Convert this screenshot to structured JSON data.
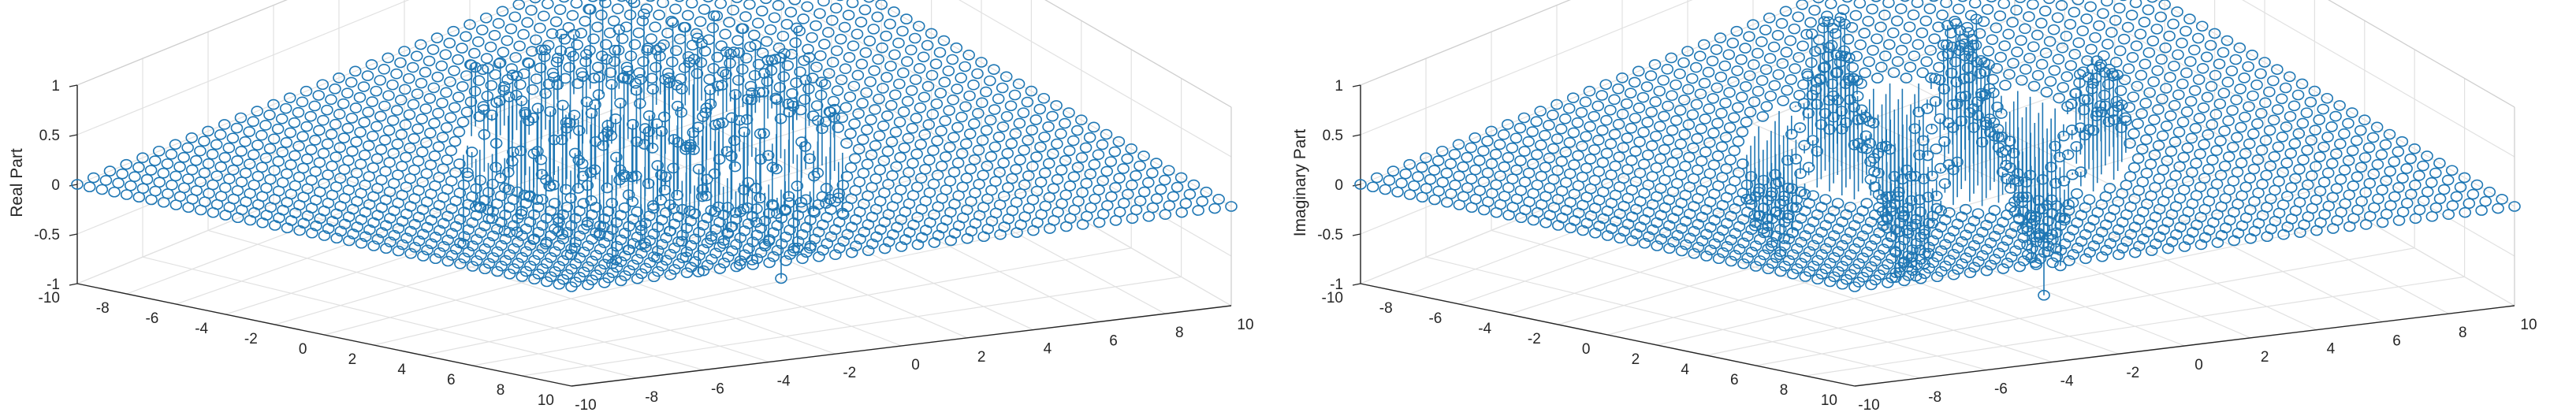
{
  "colors": {
    "series": "#1f77b4",
    "text": "#262626",
    "grid": "#e1e1e1"
  },
  "chart_data": [
    {
      "type": "stem3",
      "part": "real",
      "zlabel": "Real Part",
      "xlabel": "",
      "ylabel": "",
      "title": "",
      "xlim": [
        -10,
        10
      ],
      "ylim": [
        -10,
        10
      ],
      "zlim": [
        -1,
        1
      ],
      "xticks": [
        "-10",
        "-8",
        "-6",
        "-4",
        "-2",
        "0",
        "2",
        "4",
        "6",
        "8",
        "10"
      ],
      "yticks": [
        "-10",
        "-8",
        "-6",
        "-4",
        "-2",
        "0",
        "2",
        "4",
        "6",
        "8",
        "10"
      ],
      "zticks": [
        "-1",
        "-0.5",
        "0",
        "0.5",
        "1"
      ],
      "grid": "on",
      "grid_points": {
        "start": -10,
        "stop": 10,
        "step": 0.5
      },
      "surface": "z ≈ 0 over the grid, with stems up to ±1 along a central band around x ≈ -3…3, y ≈ -4…4"
    },
    {
      "type": "stem3",
      "part": "imaginary",
      "zlabel": "Imaginary Part",
      "xlabel": "",
      "ylabel": "",
      "title": "",
      "xlim": [
        -10,
        10
      ],
      "ylim": [
        -10,
        10
      ],
      "zlim": [
        -1,
        1
      ],
      "xticks": [
        "-10",
        "-8",
        "-6",
        "-4",
        "-2",
        "0",
        "2",
        "4",
        "6",
        "8",
        "10"
      ],
      "yticks": [
        "-10",
        "-8",
        "-6",
        "-4",
        "-2",
        "0",
        "2",
        "4",
        "6",
        "8",
        "10"
      ],
      "zticks": [
        "-1",
        "-0.5",
        "0",
        "0.5",
        "1"
      ],
      "grid": "on",
      "grid_points": {
        "start": -10,
        "stop": 10,
        "step": 0.5
      },
      "surface": "z ≈ 0 over the grid, with stems up to ±1 along a central band around x ≈ -3…3, y ≈ -4…4"
    }
  ]
}
